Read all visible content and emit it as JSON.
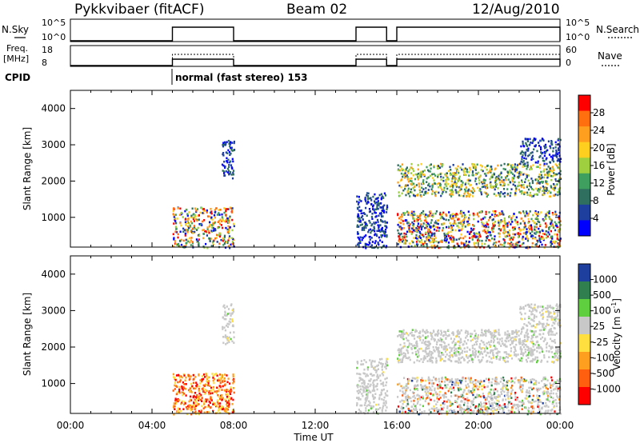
{
  "header": {
    "station": "Pykkvibaer (fitACF)",
    "beam": "Beam 02",
    "date": "12/Aug/2010"
  },
  "status": {
    "nsky_label": "N.Sky",
    "nsky_ticks": [
      "10^5",
      "10^0"
    ],
    "nsearch_label": "N.Search",
    "nsearch_ticks": [
      "10^5",
      "10^0"
    ],
    "freq_label_1": "Freq.",
    "freq_label_2": "[MHz]",
    "freq_ticks": [
      "18",
      "8"
    ],
    "nave_label": "Nave",
    "nave_ticks": [
      "60",
      "0"
    ],
    "cpid_label": "CPID",
    "cpid_text": "normal (fast stereo) 153",
    "on_intervals": [
      [
        5.0,
        8.0
      ],
      [
        14.0,
        15.5
      ],
      [
        16.0,
        24.0
      ]
    ]
  },
  "colors": {
    "power": [
      "#0000ff",
      "#1f3f9f",
      "#2f6f5f",
      "#3f9f5f",
      "#9fcf3f",
      "#ffcf1f",
      "#ff9f1f",
      "#ff6f0f",
      "#ff0000"
    ],
    "velocity": [
      "#ff0000",
      "#ff5f0f",
      "#ff9f1f",
      "#ffdf3f",
      "#c8c8c8",
      "#5fcf3f",
      "#2f7f4f",
      "#1f3f9f"
    ]
  },
  "chart_data": [
    {
      "type": "heatmap",
      "name": "power",
      "x": "Time UT (hours)",
      "xlim": [
        0,
        24
      ],
      "xticks": [
        "00:00",
        "04:00",
        "08:00",
        "12:00",
        "16:00",
        "20:00",
        "00:00"
      ],
      "xlabel": "Time UT",
      "ylabel": "Slant Range [km]",
      "ylim": [
        180,
        4500
      ],
      "yticks": [
        "4000",
        "3000",
        "2000",
        "1000"
      ],
      "colorbar_label": "Power [dB]",
      "colorbar_ticks": [
        "28",
        "24",
        "20",
        "16",
        "12",
        "8",
        "4"
      ],
      "scatter_regions": [
        {
          "t0": 5.0,
          "t1": 8.0,
          "r0": 180,
          "r1": 1300,
          "level": "high"
        },
        {
          "t0": 7.4,
          "t1": 8.0,
          "r0": 2100,
          "r1": 3200,
          "level": "low"
        },
        {
          "t0": 14.0,
          "t1": 15.5,
          "r0": 180,
          "r1": 1700,
          "level": "low"
        },
        {
          "t0": 16.0,
          "t1": 24.0,
          "r0": 1600,
          "r1": 2500,
          "level": "mid"
        },
        {
          "t0": 16.0,
          "t1": 24.0,
          "r0": 180,
          "r1": 1200,
          "level": "mixed"
        },
        {
          "t0": 22.0,
          "t1": 24.0,
          "r0": 2500,
          "r1": 3200,
          "level": "low"
        }
      ]
    },
    {
      "type": "heatmap",
      "name": "velocity",
      "x": "Time UT (hours)",
      "xlim": [
        0,
        24
      ],
      "xticks": [
        "00:00",
        "04:00",
        "08:00",
        "12:00",
        "16:00",
        "20:00",
        "00:00"
      ],
      "xlabel": "Time UT",
      "ylabel": "Slant Range [km]",
      "ylim": [
        180,
        4500
      ],
      "yticks": [
        "4000",
        "3000",
        "2000",
        "1000"
      ],
      "colorbar_label": "Velocity [m s^-1]",
      "colorbar_ticks": [
        "1000",
        "500",
        "100",
        "25",
        "-25",
        "-100",
        "-500",
        "-1000"
      ],
      "scatter_regions": [
        {
          "t0": 5.0,
          "t1": 8.0,
          "r0": 180,
          "r1": 1300,
          "level": "neg"
        },
        {
          "t0": 7.4,
          "t1": 8.0,
          "r0": 2100,
          "r1": 3200,
          "level": "zero"
        },
        {
          "t0": 14.0,
          "t1": 15.5,
          "r0": 180,
          "r1": 1700,
          "level": "zero"
        },
        {
          "t0": 16.0,
          "t1": 24.0,
          "r0": 1600,
          "r1": 2500,
          "level": "zero"
        },
        {
          "t0": 16.0,
          "t1": 24.0,
          "r0": 180,
          "r1": 1200,
          "level": "mixed"
        },
        {
          "t0": 22.0,
          "t1": 24.0,
          "r0": 2500,
          "r1": 3200,
          "level": "zero"
        }
      ]
    }
  ]
}
